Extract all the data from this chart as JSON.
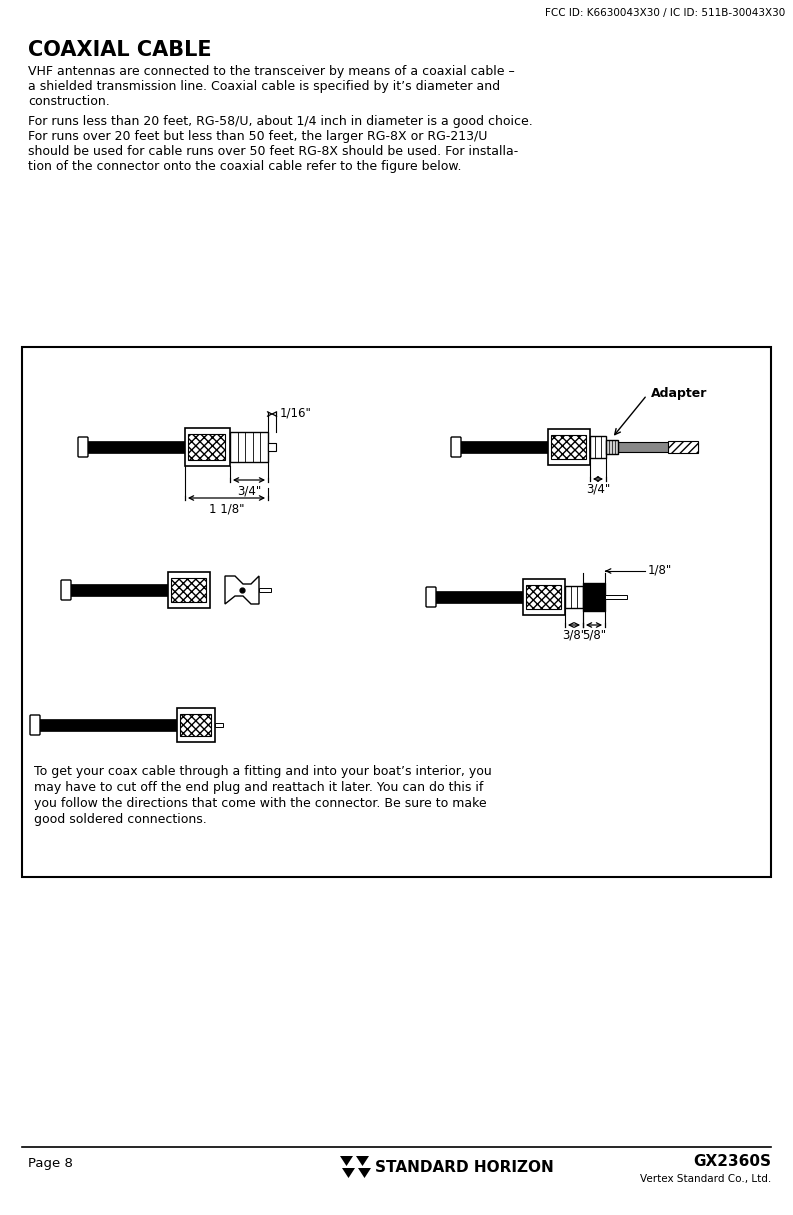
{
  "fcc_text": "FCC ID: K6630043X30 / IC ID: 511B-30043X30",
  "title": "COAXIAL CABLE",
  "para1": "VHF antennas are connected to the transceiver by means of a coaxial cable –\na shielded transmission line. Coaxial cable is specified by it’s diameter and\nconstruction.",
  "para2": "For runs less than 20 feet, RG-58/U, about 1/4 inch in diameter is a good choice.\nFor runs over 20 feet but less than 50 feet, the larger RG-8X or RG-213/U\nshould be used for cable runs over 50 feet RG-8X should be used. For installa-\ntion of the connector onto the coaxial cable refer to the figure below.",
  "box_text_line1": "To get your coax cable through a fitting and into your boat’s interior, you",
  "box_text_line2": "may have to cut off the end plug and reattach it later. You can do this if",
  "box_text_line3": "you follow the directions that come with the connector. Be sure to make",
  "box_text_line4": "good soldered connections.",
  "page_text": "Page 8",
  "brand_text": "STANDARD HORIZON",
  "model_text": "GX2360S",
  "company_text": "Vertex Standard Co., Ltd.",
  "dim_1_16": "1/16\"",
  "dim_3_4_left": "3/4\"",
  "dim_1_1_8": "1 1/8\"",
  "dim_adapter": "Adapter",
  "dim_3_4_right": "3/4\"",
  "dim_1_8": "1/8\"",
  "dim_3_8": "3/8\"",
  "dim_5_8": "5/8\"",
  "bg_color": "#ffffff",
  "text_color": "#000000",
  "box_bg": "#ffffff",
  "box_border": "#000000"
}
